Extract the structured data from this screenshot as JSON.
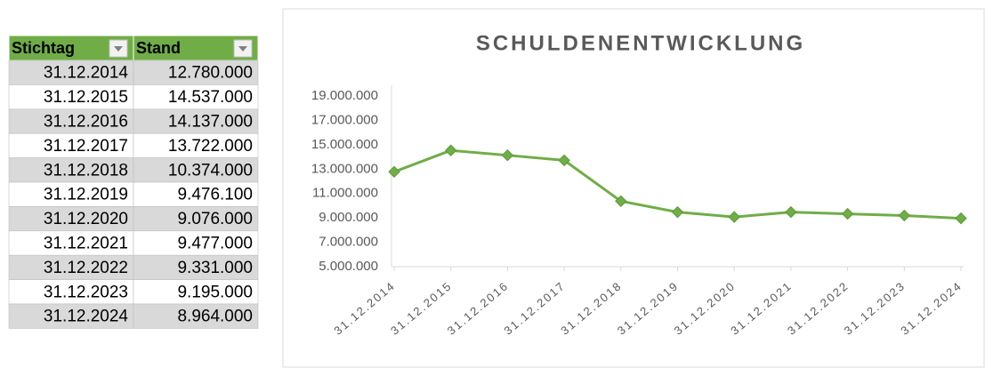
{
  "table": {
    "header": [
      "Stichtag",
      "Stand"
    ],
    "rows": [
      [
        "31.12.2014",
        "12.780.000"
      ],
      [
        "31.12.2015",
        "14.537.000"
      ],
      [
        "31.12.2016",
        "14.137.000"
      ],
      [
        "31.12.2017",
        "13.722.000"
      ],
      [
        "31.12.2018",
        "10.374.000"
      ],
      [
        "31.12.2019",
        "9.476.100"
      ],
      [
        "31.12.2020",
        "9.076.000"
      ],
      [
        "31.12.2021",
        "9.477.000"
      ],
      [
        "31.12.2022",
        "9.331.000"
      ],
      [
        "31.12.2023",
        "9.195.000"
      ],
      [
        "31.12.2024",
        "8.964.000"
      ]
    ]
  },
  "chart_data": {
    "type": "line",
    "title": "SCHULDENENTWICKLUNG",
    "categories": [
      "31.12.2014",
      "31.12.2015",
      "31.12.2016",
      "31.12.2017",
      "31.12.2018",
      "31.12.2019",
      "31.12.2020",
      "31.12.2021",
      "31.12.2022",
      "31.12.2023",
      "31.12.2024"
    ],
    "values": [
      12780000,
      14537000,
      14137000,
      13722000,
      10374000,
      9476100,
      9076000,
      9477000,
      9331000,
      9195000,
      8964000
    ],
    "color": "#70ad47",
    "ylim": [
      5000000,
      19000000
    ],
    "yticks": [
      {
        "value": 5000000,
        "label": "5.000.000"
      },
      {
        "value": 7000000,
        "label": "7.000.000"
      },
      {
        "value": 9000000,
        "label": "9.000.000"
      },
      {
        "value": 11000000,
        "label": "11.000.000"
      },
      {
        "value": 13000000,
        "label": "13.000.000"
      },
      {
        "value": 15000000,
        "label": "15.000.000"
      },
      {
        "value": 17000000,
        "label": "17.000.000"
      },
      {
        "value": 19000000,
        "label": "19.000.000"
      }
    ],
    "grid": false
  }
}
